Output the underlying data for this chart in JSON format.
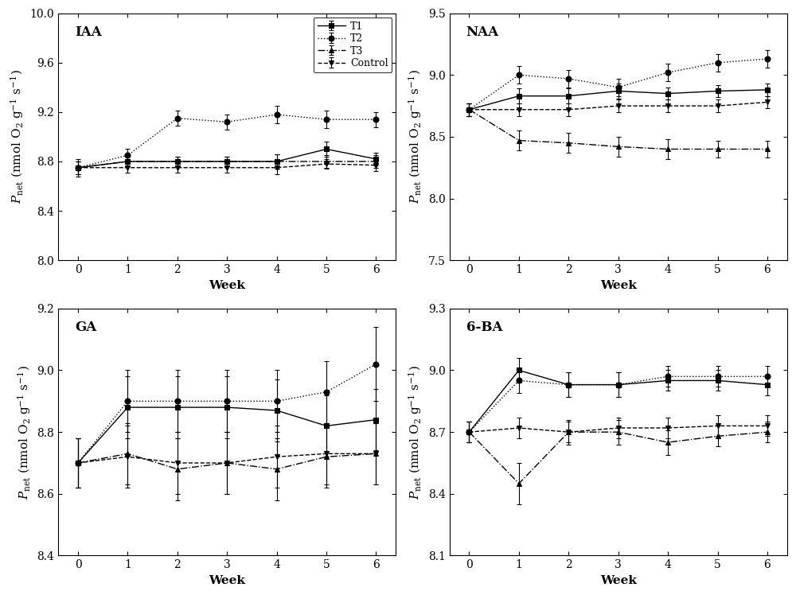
{
  "weeks": [
    0,
    1,
    2,
    3,
    4,
    5,
    6
  ],
  "panels": [
    {
      "label": "IAA",
      "ylim": [
        8.0,
        10.0
      ],
      "yticks": [
        8.0,
        8.4,
        8.8,
        9.2,
        9.6,
        10.0
      ],
      "series": [
        {
          "name": "T1",
          "y": [
            8.75,
            8.8,
            8.8,
            8.8,
            8.8,
            8.9,
            8.82
          ],
          "yerr": [
            0.05,
            0.04,
            0.04,
            0.04,
            0.06,
            0.06,
            0.05
          ],
          "linestyle": "-",
          "marker": "s"
        },
        {
          "name": "T2",
          "y": [
            8.75,
            8.85,
            9.15,
            9.12,
            9.18,
            9.14,
            9.14
          ],
          "yerr": [
            0.05,
            0.05,
            0.06,
            0.06,
            0.07,
            0.07,
            0.06
          ],
          "linestyle": ":",
          "marker": "o"
        },
        {
          "name": "T3",
          "y": [
            8.75,
            8.8,
            8.8,
            8.8,
            8.8,
            8.8,
            8.8
          ],
          "yerr": [
            0.05,
            0.04,
            0.04,
            0.04,
            0.06,
            0.05,
            0.05
          ],
          "linestyle": "-.",
          "marker": "^"
        },
        {
          "name": "Control",
          "y": [
            8.75,
            8.75,
            8.75,
            8.75,
            8.75,
            8.78,
            8.77
          ],
          "yerr": [
            0.07,
            0.04,
            0.04,
            0.04,
            0.05,
            0.04,
            0.05
          ],
          "linestyle": "--",
          "marker": "v"
        }
      ],
      "show_legend": true
    },
    {
      "label": "NAA",
      "ylim": [
        7.5,
        9.5
      ],
      "yticks": [
        7.5,
        8.0,
        8.5,
        9.0,
        9.5
      ],
      "series": [
        {
          "name": "T1",
          "y": [
            8.72,
            8.83,
            8.83,
            8.87,
            8.85,
            8.87,
            8.88
          ],
          "yerr": [
            0.05,
            0.06,
            0.06,
            0.06,
            0.05,
            0.05,
            0.05
          ],
          "linestyle": "-",
          "marker": "s"
        },
        {
          "name": "T2",
          "y": [
            8.72,
            9.0,
            8.97,
            8.9,
            9.02,
            9.1,
            9.13
          ],
          "yerr": [
            0.05,
            0.07,
            0.07,
            0.07,
            0.07,
            0.07,
            0.07
          ],
          "linestyle": ":",
          "marker": "o"
        },
        {
          "name": "T3",
          "y": [
            8.72,
            8.47,
            8.45,
            8.42,
            8.4,
            8.4,
            8.4
          ],
          "yerr": [
            0.05,
            0.08,
            0.08,
            0.08,
            0.08,
            0.07,
            0.07
          ],
          "linestyle": "-.",
          "marker": "^"
        },
        {
          "name": "Control",
          "y": [
            8.72,
            8.72,
            8.72,
            8.75,
            8.75,
            8.75,
            8.78
          ],
          "yerr": [
            0.05,
            0.05,
            0.05,
            0.05,
            0.05,
            0.05,
            0.05
          ],
          "linestyle": "--",
          "marker": "v"
        }
      ],
      "show_legend": false
    },
    {
      "label": "GA",
      "ylim": [
        8.4,
        9.2
      ],
      "yticks": [
        8.4,
        8.6,
        8.8,
        9.0,
        9.2
      ],
      "series": [
        {
          "name": "T1",
          "y": [
            8.7,
            8.88,
            8.88,
            8.88,
            8.87,
            8.82,
            8.84
          ],
          "yerr": [
            0.08,
            0.1,
            0.1,
            0.1,
            0.1,
            0.1,
            0.1
          ],
          "linestyle": "-",
          "marker": "s"
        },
        {
          "name": "T2",
          "y": [
            8.7,
            8.9,
            8.9,
            8.9,
            8.9,
            8.93,
            9.02
          ],
          "yerr": [
            0.08,
            0.1,
            0.1,
            0.1,
            0.1,
            0.1,
            0.12
          ],
          "linestyle": ":",
          "marker": "o"
        },
        {
          "name": "T3",
          "y": [
            8.7,
            8.73,
            8.68,
            8.7,
            8.68,
            8.72,
            8.73
          ],
          "yerr": [
            0.08,
            0.1,
            0.1,
            0.1,
            0.1,
            0.1,
            0.1
          ],
          "linestyle": "-.",
          "marker": "^"
        },
        {
          "name": "Control",
          "y": [
            8.7,
            8.72,
            8.7,
            8.7,
            8.72,
            8.73,
            8.73
          ],
          "yerr": [
            0.08,
            0.1,
            0.1,
            0.1,
            0.1,
            0.1,
            0.1
          ],
          "linestyle": "--",
          "marker": "v"
        }
      ],
      "show_legend": false
    },
    {
      "label": "6-BA",
      "ylim": [
        8.1,
        9.3
      ],
      "yticks": [
        8.1,
        8.4,
        8.7,
        9.0,
        9.3
      ],
      "series": [
        {
          "name": "T1",
          "y": [
            8.7,
            9.0,
            8.93,
            8.93,
            8.95,
            8.95,
            8.93
          ],
          "yerr": [
            0.05,
            0.06,
            0.06,
            0.06,
            0.05,
            0.05,
            0.05
          ],
          "linestyle": "-",
          "marker": "s"
        },
        {
          "name": "T2",
          "y": [
            8.7,
            8.95,
            8.93,
            8.93,
            8.97,
            8.97,
            8.97
          ],
          "yerr": [
            0.05,
            0.06,
            0.06,
            0.06,
            0.05,
            0.05,
            0.05
          ],
          "linestyle": ":",
          "marker": "o"
        },
        {
          "name": "T3",
          "y": [
            8.7,
            8.45,
            8.7,
            8.7,
            8.65,
            8.68,
            8.7
          ],
          "yerr": [
            0.05,
            0.1,
            0.06,
            0.06,
            0.06,
            0.05,
            0.05
          ],
          "linestyle": "-.",
          "marker": "^"
        },
        {
          "name": "Control",
          "y": [
            8.7,
            8.72,
            8.7,
            8.72,
            8.72,
            8.73,
            8.73
          ],
          "yerr": [
            0.05,
            0.05,
            0.05,
            0.05,
            0.05,
            0.05,
            0.05
          ],
          "linestyle": "--",
          "marker": "v"
        }
      ],
      "show_legend": false
    }
  ],
  "color": "black",
  "markersize": 5,
  "linewidth": 1.0,
  "capsize": 2,
  "elinewidth": 0.8,
  "xlabel": "Week",
  "ylabel": "$P_\\mathrm{net}$ (nmol O$_2$ g$^{-1}$ s$^{-1}$)",
  "background_color": "#ffffff",
  "tick_labelsize": 10,
  "axis_labelsize": 11,
  "panel_labelsize": 12
}
